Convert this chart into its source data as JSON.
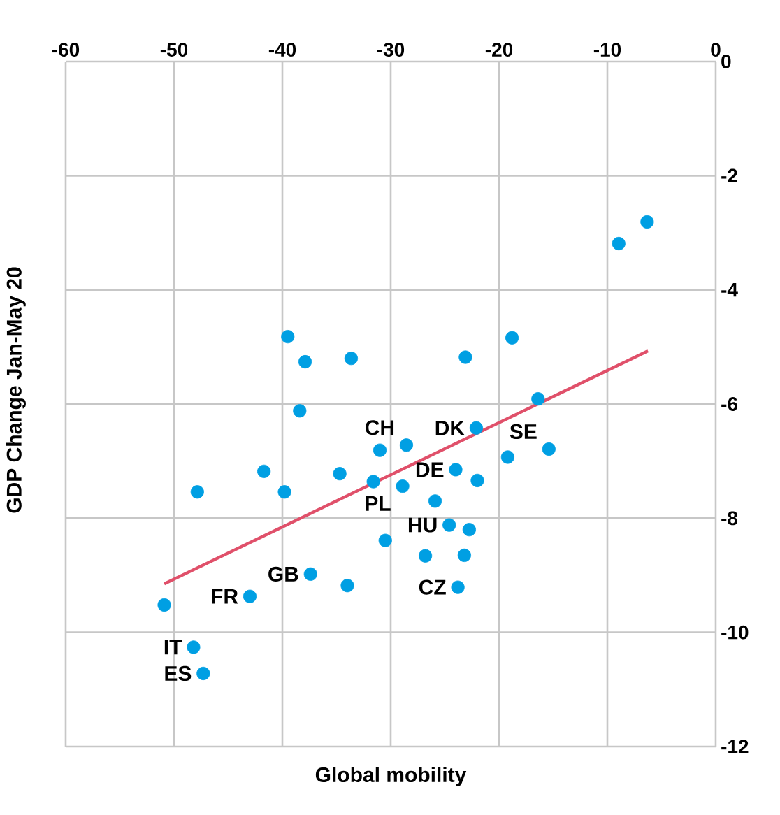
{
  "chart_data": {
    "type": "scatter",
    "xlabel": "Global mobility",
    "ylabel": "GDP Change Jan-May 20",
    "xlim": [
      -60,
      0
    ],
    "ylim": [
      -12,
      0
    ],
    "xticks": [
      -60,
      -50,
      -40,
      -30,
      -20,
      -10,
      0
    ],
    "yticks": [
      -12,
      -10,
      -8,
      -6,
      -4,
      -2,
      0
    ],
    "grid": true,
    "series": [
      {
        "type": "scatter",
        "color": "#009fe3",
        "marker": "circle",
        "x": [
          -39.5,
          -37.9,
          -33.65,
          -38.4,
          -41.7,
          -47.85,
          -39.8,
          -34.7,
          -31.0,
          -28.55,
          -31.6,
          -28.9,
          -25.9,
          -30.5,
          -26.8,
          -37.4,
          -34.0,
          -43.0,
          -50.9,
          -48.2,
          -47.3,
          -6.33,
          -8.95,
          -18.8,
          -23.1,
          -16.4,
          -22.1,
          -19.2,
          -15.4,
          -24.0,
          -22.0,
          -24.6,
          -22.75,
          -23.2,
          -23.8
        ],
        "values": [
          -4.82,
          -5.26,
          -5.2,
          -6.12,
          -7.18,
          -7.54,
          -7.54,
          -7.22,
          -6.81,
          -6.72,
          -7.36,
          -7.44,
          -7.7,
          -8.39,
          -8.66,
          -8.98,
          -9.18,
          -9.37,
          -9.52,
          -10.26,
          -10.72,
          -2.81,
          -3.19,
          -4.84,
          -5.18,
          -5.91,
          -6.42,
          -6.93,
          -6.79,
          -7.15,
          -7.34,
          -8.12,
          -8.2,
          -8.65,
          -9.21
        ]
      },
      {
        "type": "line",
        "color": "#e0506a",
        "marker": "none",
        "line_style": "solid",
        "x": [
          -50.9,
          -6.25
        ],
        "values": [
          -9.15,
          -5.07
        ]
      }
    ],
    "annotations": [
      {
        "text": "CH",
        "x": -28.55,
        "y": -6.72
      },
      {
        "text": "DK",
        "x": -22.1,
        "y": -6.42
      },
      {
        "text": "PL",
        "x": -28.9,
        "y": -7.44
      },
      {
        "text": "DE",
        "x": -24.0,
        "y": -7.15
      },
      {
        "text": "SE",
        "x": -15.4,
        "y": -6.79
      },
      {
        "text": "HU",
        "x": -24.6,
        "y": -8.12
      },
      {
        "text": "CZ",
        "x": -23.8,
        "y": -9.21
      },
      {
        "text": "GB",
        "x": -37.4,
        "y": -8.98
      },
      {
        "text": "FR",
        "x": -43.0,
        "y": -9.37
      },
      {
        "text": "IT",
        "x": -48.2,
        "y": -10.26
      },
      {
        "text": "ES",
        "x": -47.3,
        "y": -10.72
      }
    ]
  }
}
